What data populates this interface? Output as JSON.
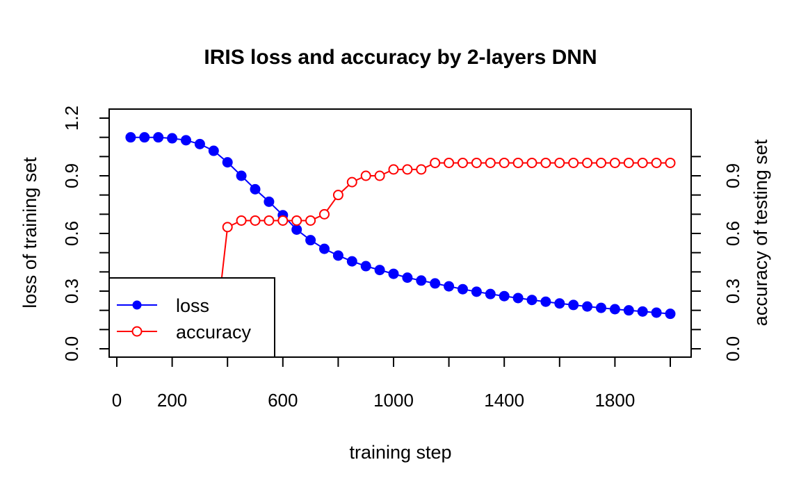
{
  "chart_data": {
    "type": "line",
    "title": "IRIS loss and accuracy by 2-layers DNN",
    "xlabel": "training step",
    "ylabel": "loss of training set",
    "y2label": "accuracy of testing set",
    "xlim": [
      0,
      2000
    ],
    "ylim": [
      0,
      1.2
    ],
    "y2lim": [
      0,
      1.2
    ],
    "xticks": [
      0,
      200,
      600,
      1000,
      1400,
      1800
    ],
    "xticks_minor": [
      0,
      200,
      400,
      600,
      800,
      1000,
      1200,
      1400,
      1600,
      1800,
      2000
    ],
    "yticks": [
      0.0,
      0.3,
      0.6,
      0.9,
      1.2
    ],
    "yticks_minor": [
      0.0,
      0.1,
      0.2,
      0.3,
      0.4,
      0.5,
      0.6,
      0.7,
      0.8,
      0.9,
      1.0,
      1.1,
      1.2
    ],
    "y2ticks": [
      0.0,
      0.3,
      0.6,
      0.9
    ],
    "y2ticks_minor": [
      0.0,
      0.1,
      0.2,
      0.3,
      0.4,
      0.5,
      0.6,
      0.7,
      0.8,
      0.9,
      1.0
    ],
    "x": [
      50,
      100,
      150,
      200,
      250,
      300,
      350,
      400,
      450,
      500,
      550,
      600,
      650,
      700,
      750,
      800,
      850,
      900,
      950,
      1000,
      1050,
      1100,
      1150,
      1200,
      1250,
      1300,
      1350,
      1400,
      1450,
      1500,
      1550,
      1600,
      1650,
      1700,
      1750,
      1800,
      1850,
      1900,
      1950,
      2000
    ],
    "series": [
      {
        "name": "loss",
        "axis": "left",
        "color": "#0000ff",
        "marker": "filled-circle",
        "values": [
          1.1,
          1.1,
          1.1,
          1.095,
          1.085,
          1.065,
          1.03,
          0.97,
          0.9,
          0.83,
          0.765,
          0.695,
          0.62,
          0.565,
          0.52,
          0.485,
          0.455,
          0.43,
          0.41,
          0.39,
          0.37,
          0.355,
          0.34,
          0.325,
          0.31,
          0.297,
          0.285,
          0.274,
          0.264,
          0.254,
          0.245,
          0.236,
          0.228,
          0.22,
          0.213,
          0.206,
          0.2,
          0.194,
          0.188,
          0.182
        ]
      },
      {
        "name": "accuracy",
        "axis": "right",
        "color": "#ff0000",
        "marker": "open-circle",
        "values": [
          0.0,
          0.0,
          0.0,
          0.0,
          0.0,
          0.0,
          0.0,
          0.633,
          0.667,
          0.667,
          0.667,
          0.667,
          0.667,
          0.667,
          0.7,
          0.8,
          0.867,
          0.9,
          0.9,
          0.933,
          0.933,
          0.933,
          0.967,
          0.967,
          0.967,
          0.967,
          0.967,
          0.967,
          0.967,
          0.967,
          0.967,
          0.967,
          0.967,
          0.967,
          0.967,
          0.967,
          0.967,
          0.967,
          0.967,
          0.967
        ]
      }
    ],
    "legend": {
      "position": "bottom-left",
      "entries": [
        "loss",
        "accuracy"
      ]
    },
    "grid": false
  }
}
